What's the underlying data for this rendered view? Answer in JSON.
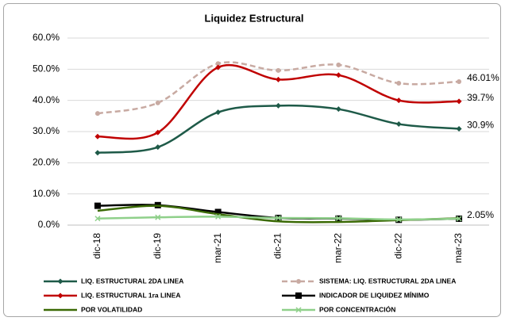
{
  "chart_data": {
    "type": "line",
    "title": "Liquidez Estructural",
    "categories": [
      "dic-18",
      "dic-19",
      "mar-21",
      "dic-21",
      "mar-22",
      "dic-22",
      "mar-23"
    ],
    "ylim": [
      0,
      60
    ],
    "yticks": [
      {
        "value": 0,
        "label": "0.0%"
      },
      {
        "value": 10,
        "label": "10.0%"
      },
      {
        "value": 20,
        "label": "20.0%"
      },
      {
        "value": 30,
        "label": "30.0%"
      },
      {
        "value": 40,
        "label": "40.0%"
      },
      {
        "value": 50,
        "label": "50.0%"
      },
      {
        "value": 60,
        "label": "60.0%"
      }
    ],
    "grid": true,
    "series": [
      {
        "name": "LIQ. ESTRUCTURAL 2DA LINEA",
        "color": "#1e5a48",
        "marker": "diamond",
        "dash": false,
        "values": [
          23.2,
          25.0,
          36.2,
          38.3,
          37.2,
          32.4,
          30.9
        ],
        "value_labels": [
          null,
          null,
          null,
          null,
          null,
          null,
          "30.9%"
        ]
      },
      {
        "name": "SISTEMA: LIQ. ESTRUCTURAL 2DA LINEA",
        "color": "#c8aaa2",
        "marker": "circle",
        "dash": true,
        "values": [
          35.8,
          39.2,
          51.8,
          49.6,
          51.4,
          45.5,
          46.01
        ],
        "value_labels": [
          null,
          null,
          null,
          null,
          null,
          null,
          "46.01%"
        ]
      },
      {
        "name": "LIQ. ESTRUCTURAL 1ra LINEA",
        "color": "#c00000",
        "marker": "diamond",
        "dash": false,
        "values": [
          28.4,
          29.7,
          50.6,
          46.7,
          48.1,
          40.0,
          39.7
        ],
        "value_labels": [
          null,
          null,
          null,
          null,
          null,
          null,
          "39.7%"
        ]
      },
      {
        "name": "INDICADOR DE LIQUIDEZ MÍNIMO",
        "color": "#000000",
        "marker": "square",
        "dash": false,
        "values": [
          6.2,
          6.4,
          4.2,
          2.3,
          2.1,
          1.7,
          2.05
        ],
        "value_labels": [
          null,
          null,
          null,
          null,
          null,
          null,
          "2.05%"
        ]
      },
      {
        "name": "POR VOLATILIDAD",
        "color": "#3b6a05",
        "marker": "none",
        "dash": false,
        "values": [
          4.6,
          6.2,
          3.5,
          1.2,
          1.0,
          1.6,
          2.2
        ],
        "value_labels": [
          null,
          null,
          null,
          null,
          null,
          null,
          null
        ]
      },
      {
        "name": "POR CONCENTRACIÓN",
        "color": "#8fd08a",
        "marker": "x",
        "dash": false,
        "values": [
          2.1,
          2.5,
          2.7,
          2.3,
          2.2,
          1.8,
          2.05
        ],
        "value_labels": [
          null,
          null,
          null,
          null,
          null,
          null,
          null
        ]
      }
    ]
  }
}
